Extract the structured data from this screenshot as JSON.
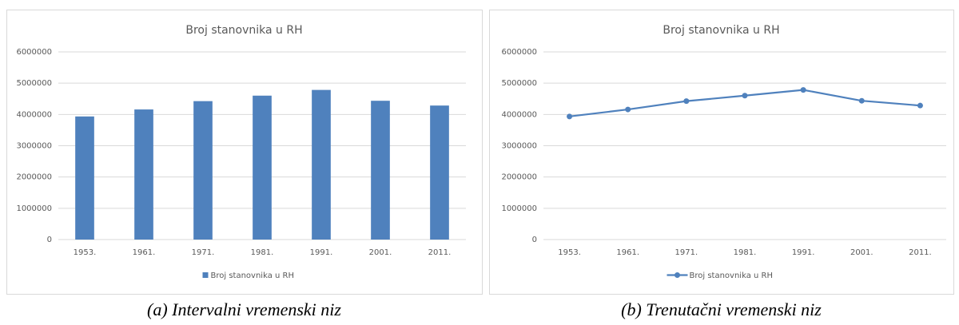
{
  "chart_data": [
    {
      "type": "bar",
      "title": "Broj stanovnika u RH",
      "caption": "(a) Intervalni vremenski niz",
      "categories": [
        "1953.",
        "1961.",
        "1971.",
        "1981.",
        "1991.",
        "2001.",
        "2011."
      ],
      "series": [
        {
          "name": "Broj stanovnika u RH",
          "color": "#4f81bd",
          "values": [
            3936022,
            4159696,
            4426221,
            4601469,
            4784265,
            4437460,
            4284889
          ]
        }
      ],
      "ylim": [
        0,
        6000000
      ],
      "yticks": [
        0,
        1000000,
        2000000,
        3000000,
        4000000,
        5000000,
        6000000
      ],
      "grid": true,
      "legend": "bottom"
    },
    {
      "type": "line",
      "title": "Broj stanovnika u RH",
      "caption": "(b) Trenutačni vremenski niz",
      "categories": [
        "1953.",
        "1961.",
        "1971.",
        "1981.",
        "1991.",
        "2001.",
        "2011."
      ],
      "series": [
        {
          "name": "Broj stanovnika u RH",
          "color": "#4f81bd",
          "values": [
            3936022,
            4159696,
            4426221,
            4601469,
            4784265,
            4437460,
            4284889
          ]
        }
      ],
      "ylim": [
        0,
        6000000
      ],
      "yticks": [
        0,
        1000000,
        2000000,
        3000000,
        4000000,
        5000000,
        6000000
      ],
      "grid": true,
      "legend": "bottom"
    }
  ]
}
